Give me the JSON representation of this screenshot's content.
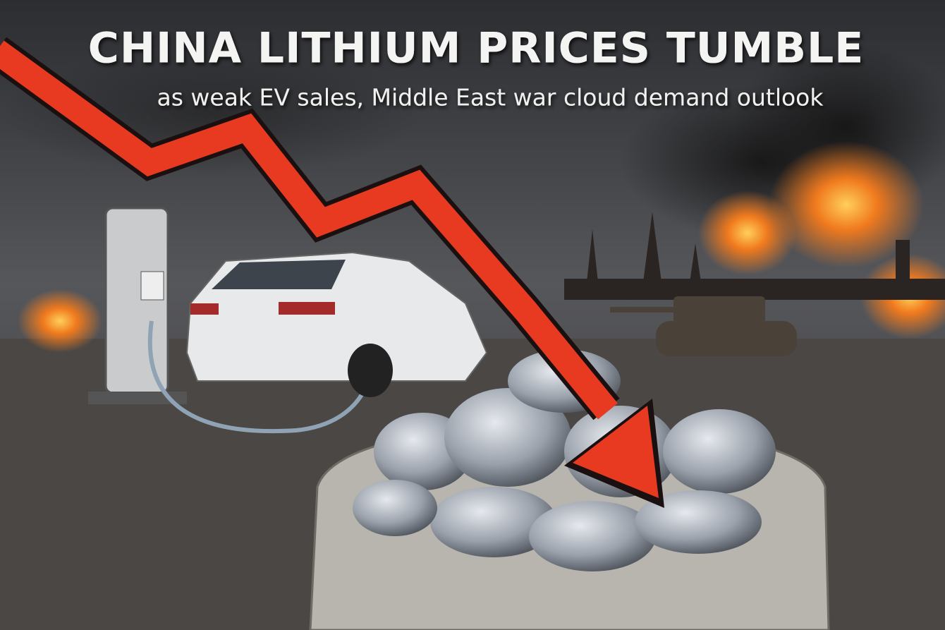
{
  "header": {
    "title": "CHINA LITHIUM PRICES TUMBLE",
    "subtitle": "as weak EV sales, Middle East war cloud demand outlook"
  }
}
